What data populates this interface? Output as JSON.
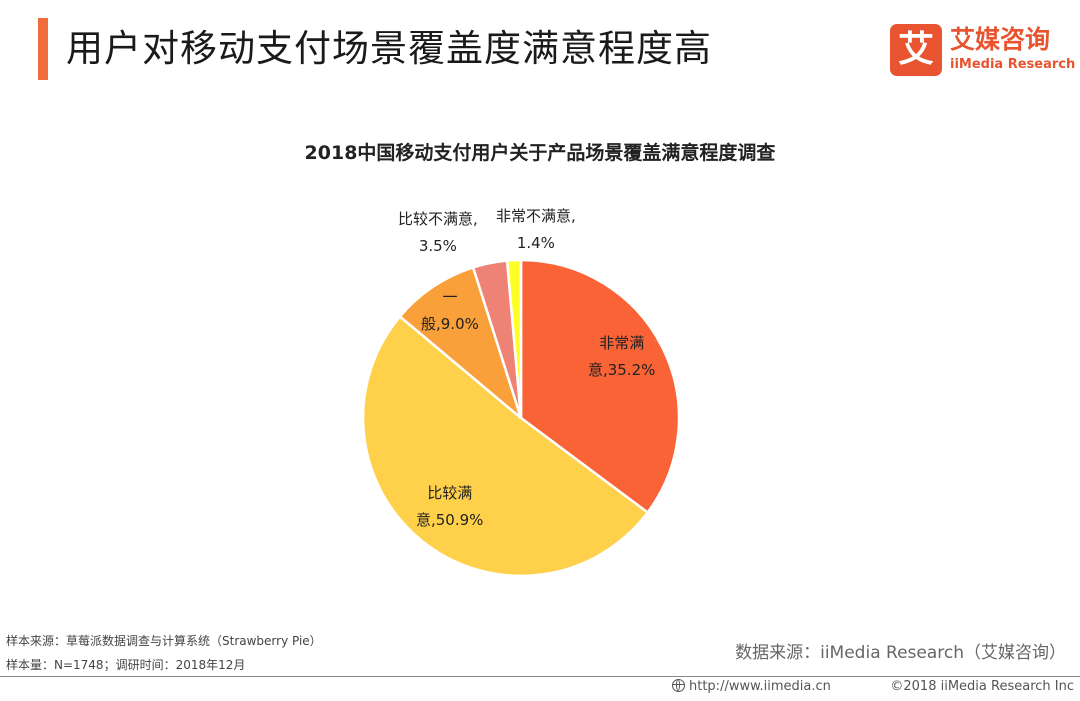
{
  "header": {
    "title": "用户对移动支付场景覆盖度满意程度高",
    "accent_color": "#f26b3a"
  },
  "logo": {
    "mark": "艾",
    "name_cn": "艾媒咨询",
    "name_en": "iiMedia Research",
    "color": "#e8542f"
  },
  "chart_data": {
    "type": "pie",
    "title": "2018中国移动支付用户关于产品场景覆盖满意程度调查",
    "start_angle_deg": 0,
    "direction": "clockwise",
    "slices": [
      {
        "line1": "非常满",
        "line2": "意,35.2%",
        "label": "非常满意",
        "value": 35.2,
        "color": "#f96336"
      },
      {
        "line1": "比较满",
        "line2": "意,50.9%",
        "label": "比较满意",
        "value": 50.9,
        "color": "#ffd04a"
      },
      {
        "line1": "一",
        "line2": "般,9.0%",
        "label": "一般",
        "value": 9.0,
        "color": "#f9a03a"
      },
      {
        "line1": "比较不满意,",
        "line2": "3.5%",
        "label": "比较不满意",
        "value": 3.5,
        "color": "#ee8375"
      },
      {
        "line1": "非常不满意,",
        "line2": "1.4%",
        "label": "非常不满意",
        "value": 1.4,
        "color": "#ffff26"
      }
    ]
  },
  "footer": {
    "sample_source": "样本来源：草莓派数据调查与计算系统（Strawberry Pie）",
    "sample_size": "样本量：N=1748；调研时间：2018年12月",
    "data_source": "数据来源：iiMedia Research（艾媒咨询）",
    "url": "http://www.iimedia.cn",
    "copyright": "©2018  iiMedia Research Inc"
  }
}
